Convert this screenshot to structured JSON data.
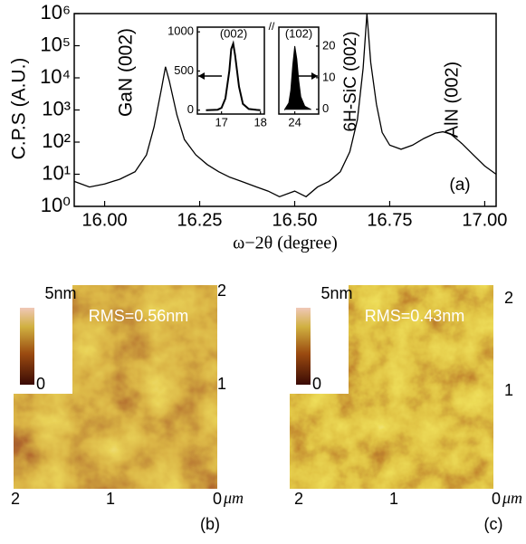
{
  "chart_data": [
    {
      "type": "line",
      "log_y": true,
      "color": "#000000",
      "xlabel": "ω−2θ (degree)",
      "ylabel": "C.P.S (A.U.)",
      "annotations": [
        "GaN (002)",
        "6H-SiC (002)",
        "AlN (002)",
        "(a)"
      ],
      "x": [
        15.92,
        15.96,
        16.0,
        16.04,
        16.08,
        16.11,
        16.13,
        16.15,
        16.16,
        16.17,
        16.19,
        16.21,
        16.24,
        16.27,
        16.3,
        16.33,
        16.36,
        16.4,
        16.43,
        16.46,
        16.5,
        16.53,
        16.56,
        16.59,
        16.62,
        16.645,
        16.665,
        16.68,
        16.69,
        16.7,
        16.715,
        16.73,
        16.75,
        16.78,
        16.81,
        16.84,
        16.87,
        16.89,
        16.91,
        16.94,
        16.97,
        17.0,
        17.03
      ],
      "values": [
        6,
        4,
        5,
        7,
        12,
        40,
        300,
        5000,
        22000,
        8000,
        700,
        120,
        40,
        20,
        12,
        8,
        6,
        4,
        3,
        2,
        3,
        2,
        4,
        6,
        12,
        50,
        500,
        20000,
        1000000,
        30000,
        1500,
        200,
        80,
        60,
        80,
        130,
        190,
        210,
        180,
        90,
        40,
        18,
        10
      ],
      "xlim": [
        15.92,
        17.03
      ],
      "ylim": [
        1,
        1000000
      ],
      "xticks": [
        {
          "value": 16.0,
          "label": "16.00"
        },
        {
          "value": 16.25,
          "label": "16.25"
        },
        {
          "value": 16.5,
          "label": "16.50"
        },
        {
          "value": 16.75,
          "label": "16.75"
        },
        {
          "value": 17.0,
          "label": "17.00"
        }
      ],
      "yticks": [
        {
          "value": 1,
          "label": "10⁰"
        },
        {
          "value": 10,
          "label": "10¹"
        },
        {
          "value": 100,
          "label": "10²"
        },
        {
          "value": 1000,
          "label": "10³"
        },
        {
          "value": 10000,
          "label": "10⁴"
        },
        {
          "value": 100000,
          "label": "10⁵"
        },
        {
          "value": 1000000,
          "label": "10⁶"
        }
      ]
    },
    {
      "type": "line",
      "color": "#000000",
      "annotations": [
        "(002)"
      ],
      "x": [
        16.6,
        16.9,
        17.0,
        17.1,
        17.2,
        17.25,
        17.3,
        17.35,
        17.45,
        17.55,
        17.7,
        17.9,
        18.0
      ],
      "values": [
        0,
        5,
        30,
        150,
        500,
        780,
        850,
        700,
        300,
        80,
        15,
        3,
        0
      ],
      "xlim": [
        16.38,
        18.1
      ],
      "ylim": [
        -50,
        1060
      ],
      "xticks": [
        17,
        18
      ],
      "yticks": [
        0,
        500,
        1000
      ]
    },
    {
      "type": "area",
      "color": "#000000",
      "annotations": [
        "(102)"
      ],
      "x": [
        23.5,
        23.7,
        23.8,
        23.9,
        24.0,
        24.1,
        24.2,
        24.3,
        24.5,
        24.8
      ],
      "values": [
        0,
        2,
        6,
        14,
        20,
        16,
        9,
        4,
        1,
        0
      ],
      "xlim": [
        23.2,
        25.2
      ],
      "ylim": [
        -1.5,
        26
      ],
      "xticks": [
        24
      ],
      "yticks": [
        0,
        10,
        20
      ]
    }
  ],
  "afm": [
    {
      "colorbar_max": "5nm",
      "colorbar_min": "0",
      "rms": "RMS=0.56nm",
      "y_ticks": [
        "2",
        "1"
      ],
      "x_ticks": [
        "2",
        "1",
        "0"
      ],
      "x_unit": "μm",
      "panel": "(b)"
    },
    {
      "colorbar_max": "5nm",
      "colorbar_min": "0",
      "rms": "RMS=0.43nm",
      "y_ticks": [
        "2",
        "1"
      ],
      "x_ticks": [
        "2",
        "1",
        "0"
      ],
      "x_unit": "μm",
      "panel": "(c)"
    }
  ]
}
